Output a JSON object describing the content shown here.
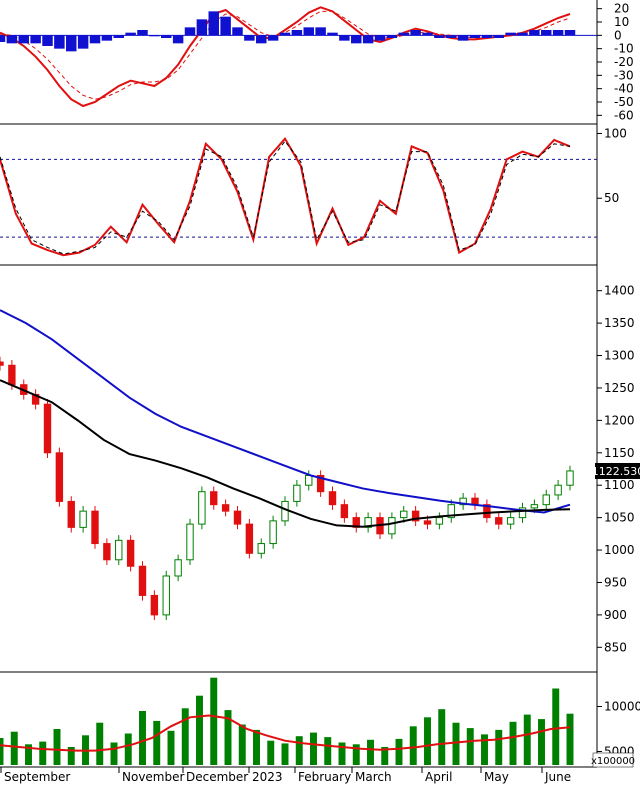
{
  "chart_data": [
    {
      "panel": "macd",
      "type": "line",
      "yticks": [
        20,
        10,
        0,
        -10,
        -20,
        -30,
        -40,
        -50,
        -60
      ],
      "ylim": [
        -65,
        25
      ],
      "series": [
        {
          "values": [
            2,
            -2,
            -8,
            -16,
            -26,
            -38,
            -48,
            -53,
            -50,
            -44,
            -38,
            -34,
            -36,
            -38,
            -32,
            -22,
            -8,
            4,
            16,
            19,
            12,
            5,
            -2,
            -2,
            4,
            10,
            17,
            21,
            18,
            11,
            4,
            -3,
            -5,
            -2,
            2,
            5,
            3,
            0,
            -2,
            -3,
            -3,
            -2,
            -1,
            0,
            2,
            5,
            9,
            13,
            16
          ],
          "color": "#e01010"
        },
        {
          "values": [
            1,
            0,
            -4,
            -10,
            -18,
            -28,
            -38,
            -45,
            -48,
            -46,
            -42,
            -37,
            -35,
            -35,
            -33,
            -26,
            -14,
            -2,
            10,
            16,
            14,
            8,
            2,
            -1,
            2,
            7,
            13,
            18,
            18,
            13,
            7,
            1,
            -2,
            -2,
            0,
            2,
            2,
            1,
            0,
            -1,
            -2,
            -2,
            -1,
            0,
            1,
            3,
            6,
            10,
            13
          ],
          "color": "#e01010",
          "style": "dashed"
        },
        {
          "type": "bar",
          "values": [
            -5,
            -6,
            -6,
            -6,
            -8,
            -10,
            -12,
            -10,
            -6,
            -4,
            -2,
            2,
            4,
            0,
            -2,
            -6,
            6,
            12,
            18,
            14,
            6,
            -4,
            -6,
            -4,
            2,
            4,
            6,
            6,
            2,
            -4,
            -6,
            -6,
            -4,
            -2,
            2,
            4,
            2,
            -2,
            -2,
            -4,
            -2,
            -2,
            -2,
            2,
            2,
            4,
            4,
            4,
            4
          ],
          "color": "#1010d0"
        }
      ]
    },
    {
      "panel": "stochastic",
      "type": "line",
      "yticks": [
        100,
        50
      ],
      "ylim": [
        0,
        105
      ],
      "reference_lines": [
        80,
        20
      ],
      "series": [
        {
          "values": [
            80,
            38,
            15,
            10,
            6,
            8,
            14,
            28,
            16,
            45,
            30,
            16,
            48,
            92,
            80,
            55,
            18,
            82,
            96,
            75,
            15,
            42,
            14,
            20,
            48,
            38,
            90,
            85,
            56,
            8,
            15,
            42,
            80,
            86,
            82,
            95,
            90
          ],
          "color": "#e01010"
        },
        {
          "values": [
            82,
            42,
            18,
            12,
            7,
            9,
            12,
            24,
            20,
            40,
            32,
            18,
            44,
            88,
            82,
            58,
            20,
            78,
            94,
            78,
            18,
            40,
            16,
            18,
            45,
            40,
            86,
            86,
            60,
            10,
            14,
            38,
            76,
            84,
            82,
            92,
            90
          ],
          "color": "#000000",
          "style": "dashed"
        }
      ]
    },
    {
      "panel": "price",
      "type": "candlestick",
      "yticks": [
        1400,
        1350,
        1300,
        1250,
        1200,
        1150,
        1100,
        1050,
        1000,
        950,
        900,
        850
      ],
      "ylim": [
        815,
        1435
      ],
      "last_price_label": "1122.530",
      "x_start": "September",
      "close": [
        1285,
        1255,
        1240,
        1225,
        1150,
        1075,
        1035,
        1060,
        1010,
        985,
        1015,
        975,
        930,
        900,
        960,
        985,
        1040,
        1090,
        1070,
        1060,
        1040,
        995,
        1010,
        1045,
        1075,
        1100,
        1115,
        1090,
        1070,
        1050,
        1035,
        1050,
        1025,
        1050,
        1060,
        1045,
        1040,
        1050,
        1070,
        1080,
        1070,
        1050,
        1040,
        1050,
        1065,
        1070,
        1085,
        1100,
        1122
      ],
      "ma_long": {
        "values": [
          1370,
          1350,
          1325,
          1295,
          1265,
          1235,
          1210,
          1190,
          1175,
          1160,
          1145,
          1130,
          1115,
          1105,
          1095,
          1088,
          1082,
          1076,
          1071,
          1067,
          1062,
          1058,
          1070
        ],
        "color": "#1010c8"
      },
      "ma_short": {
        "values": [
          1262,
          1245,
          1228,
          1200,
          1170,
          1148,
          1138,
          1126,
          1112,
          1095,
          1080,
          1063,
          1048,
          1038,
          1036,
          1040,
          1048,
          1052,
          1055,
          1058,
          1060,
          1062,
          1063
        ],
        "color": "#000000"
      },
      "up_color": "#008000",
      "down_color": "#e01010"
    },
    {
      "panel": "volume",
      "type": "bar",
      "yticks": [
        10000,
        5000
      ],
      "ylim": [
        3500,
        13500
      ],
      "unit_label": "x100000",
      "values": [
        6500,
        7200,
        5800,
        6100,
        7500,
        5500,
        6800,
        8200,
        6000,
        7000,
        9500,
        8400,
        7300,
        9800,
        11200,
        13200,
        9600,
        8000,
        7400,
        6200,
        5900,
        6700,
        7100,
        6600,
        6000,
        5800,
        6300,
        5500,
        6400,
        7800,
        8800,
        9700,
        8200,
        7600,
        6900,
        7400,
        8300,
        9100,
        8600,
        12000,
        9200
      ],
      "ma": {
        "values": [
          5700,
          5500,
          5300,
          5200,
          5100,
          5100,
          5300,
          5800,
          6500,
          7800,
          8800,
          9000,
          8700,
          7500,
          6800,
          6200,
          5900,
          5700,
          5500,
          5300,
          5200,
          5300,
          5500,
          5800,
          6000,
          6200,
          6300,
          6600,
          7000,
          7500,
          7700
        ],
        "color": "#e01010"
      },
      "color": "#008000"
    }
  ],
  "x_axis": {
    "months": [
      "September",
      "November",
      "December",
      "2023",
      "February",
      "March",
      "April",
      "May",
      "June"
    ]
  }
}
